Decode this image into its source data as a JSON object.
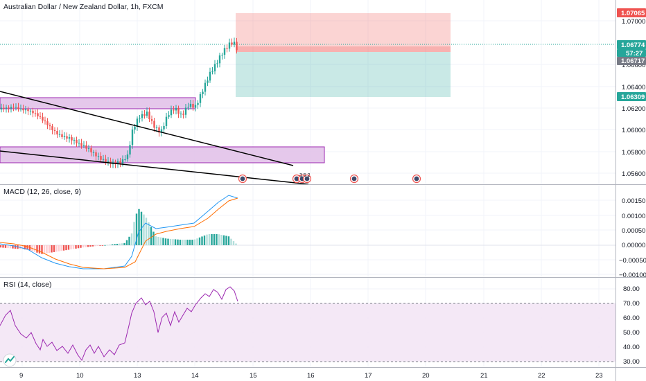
{
  "main_pane": {
    "title": "Australian Dollar / New Zealand Dollar, 1h, FXCM",
    "price_ticks": [
      "1.07000",
      "1.06600",
      "1.06400",
      "1.06200",
      "1.06000",
      "1.05800",
      "1.05600"
    ],
    "tags": {
      "target": {
        "label": "1.07065",
        "color": "#ef5350"
      },
      "current": {
        "label": "1.06774",
        "color": "#26a69a"
      },
      "countdown": {
        "label": "57:27",
        "color": "#26a69a"
      },
      "entry": {
        "label": "1.06717",
        "color": "#787b86"
      },
      "stop": {
        "label": "1.06309",
        "color": "#26a69a"
      }
    },
    "event_markers": {
      "group_label": "3 5 2"
    }
  },
  "macd_pane": {
    "title": "MACD (12, 26, close, 9)",
    "ticks": [
      "0.00150",
      "0.00100",
      "0.00050",
      "0.00000",
      "−0.00050",
      "−0.00100"
    ]
  },
  "rsi_pane": {
    "title": "RSI (14, close)",
    "ticks": [
      "80.00",
      "70.00",
      "60.00",
      "50.00",
      "40.00",
      "30.00"
    ]
  },
  "time_axis": {
    "labels": [
      "9",
      "10",
      "13",
      "14",
      "15",
      "16",
      "17",
      "20",
      "21",
      "22",
      "23"
    ]
  },
  "colors": {
    "up": "#26a69a",
    "down": "#ef5350",
    "zone_fill": "#e1bee7",
    "zone_border": "#9c27b0",
    "rsi_line": "#9c27b0",
    "rsi_band": "#f3e5f5",
    "macd_line": "#2196f3",
    "signal_line": "#ff6d00"
  }
}
